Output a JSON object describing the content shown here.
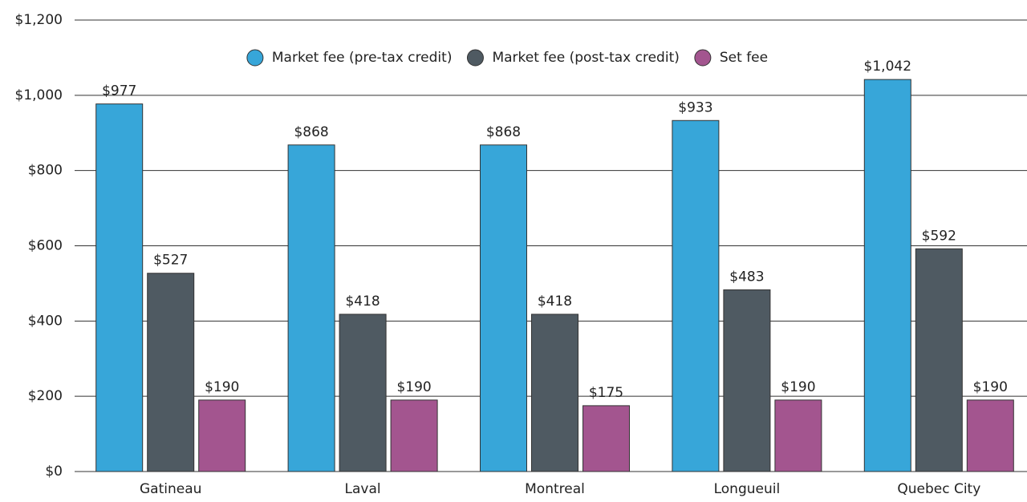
{
  "chart_data": {
    "type": "bar",
    "categories": [
      "Gatineau",
      "Laval",
      "Montreal",
      "Longueuil",
      "Quebec City"
    ],
    "series": [
      {
        "name": "Market fee (pre-tax credit)",
        "color": "#37a6d9",
        "values": [
          977,
          868,
          868,
          933,
          1042
        ],
        "value_labels": [
          "$977",
          "$868",
          "$868",
          "$933",
          "$1,042"
        ]
      },
      {
        "name": "Market fee (post-tax credit)",
        "color": "#4f5a62",
        "values": [
          527,
          418,
          418,
          483,
          592
        ],
        "value_labels": [
          "$527",
          "$418",
          "$418",
          "$483",
          "$592"
        ]
      },
      {
        "name": "Set fee",
        "color": "#a3558f",
        "values": [
          190,
          190,
          175,
          190,
          190
        ],
        "value_labels": [
          "$190",
          "$190",
          "$175",
          "$190",
          "$190"
        ]
      }
    ],
    "ylim": [
      0,
      1200
    ],
    "yticks": [
      {
        "value": 0,
        "label": "$0"
      },
      {
        "value": 200,
        "label": "$200"
      },
      {
        "value": 400,
        "label": "$400"
      },
      {
        "value": 600,
        "label": "$600"
      },
      {
        "value": 800,
        "label": "$800"
      },
      {
        "value": 1000,
        "label": "$1,000"
      },
      {
        "value": 1200,
        "label": "$1,200"
      }
    ],
    "grid": true,
    "legend": "top"
  }
}
